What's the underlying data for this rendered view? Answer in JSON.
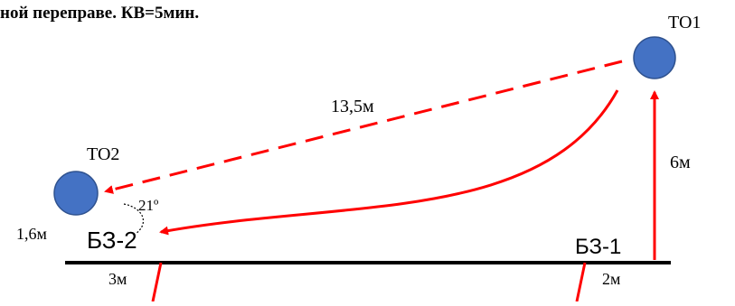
{
  "heading": "ной переправе. КВ=5мин.",
  "points": {
    "to1": "ТО1",
    "to2": "ТО2",
    "bz1": "БЗ-1",
    "bz2": "БЗ-2"
  },
  "measurements": {
    "diagonal": "13,5м",
    "vertical": "6м",
    "angle": "21º",
    "to2_offset": "1,6м",
    "bz2_width": "3м",
    "bz1_width": "2м"
  },
  "colors": {
    "route": "#ff0000",
    "circle_fill": "#4472c4",
    "circle_stroke": "#2f528f",
    "ground": "#000000"
  }
}
